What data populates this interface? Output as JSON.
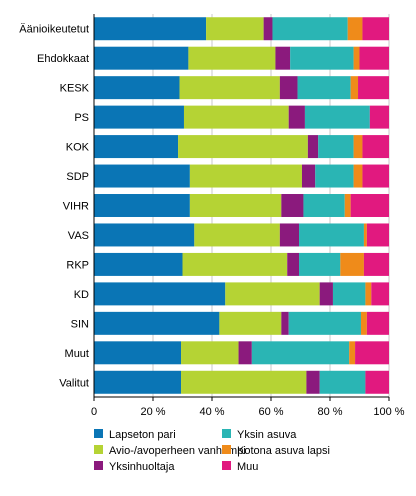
{
  "chart_data": {
    "type": "bar",
    "orientation": "horizontal",
    "stacked": true,
    "title": "",
    "xlabel": "",
    "ylabel": "",
    "xlim": [
      0,
      100
    ],
    "x_ticks": [
      0,
      20,
      40,
      60,
      80,
      100
    ],
    "x_tick_labels": [
      "0",
      "20 %",
      "40 %",
      "60 %",
      "80 %",
      "100 %"
    ],
    "grid": "vertical",
    "legend_position": "bottom",
    "categories": [
      "Äänioikeutetut",
      "Ehdokkaat",
      "KESK",
      "PS",
      "KOK",
      "SDP",
      "VIHR",
      "VAS",
      "RKP",
      "KD",
      "SIN",
      "Muut",
      "Valitut"
    ],
    "series": [
      {
        "name": "Lapseton pari",
        "color": "#0a75b5",
        "values": [
          38,
          32,
          29,
          30.5,
          28.5,
          32.5,
          32.5,
          34,
          30,
          44.5,
          42.5,
          29.5,
          29.5
        ]
      },
      {
        "name": "Avio-/avoperheen vanhempi",
        "color": "#b5d334",
        "values": [
          19.5,
          29.5,
          34,
          35.5,
          44,
          38,
          31,
          29,
          35.5,
          32,
          21,
          19.5,
          42.5
        ]
      },
      {
        "name": "Yksinhuoltaja",
        "color": "#8b1a7d",
        "values": [
          3,
          5,
          6,
          5.5,
          3.5,
          4.5,
          7.5,
          6.5,
          4,
          4.5,
          2.5,
          4.5,
          4.5
        ]
      },
      {
        "name": "Yksin asuva",
        "color": "#2ab5b4",
        "values": [
          25.5,
          21.5,
          18,
          22,
          12,
          13,
          14,
          22,
          14,
          11,
          24.5,
          33,
          15.5
        ]
      },
      {
        "name": "Kotona asuva lapsi",
        "color": "#ef8b1a",
        "values": [
          5,
          2,
          2.5,
          0,
          3,
          3,
          2,
          1,
          8,
          2,
          2,
          2,
          0
        ]
      },
      {
        "name": "Muu",
        "color": "#e1197f",
        "values": [
          9,
          10,
          10.5,
          6.5,
          9,
          9,
          13,
          7.5,
          8.5,
          6,
          7.5,
          11.5,
          8
        ]
      }
    ]
  }
}
